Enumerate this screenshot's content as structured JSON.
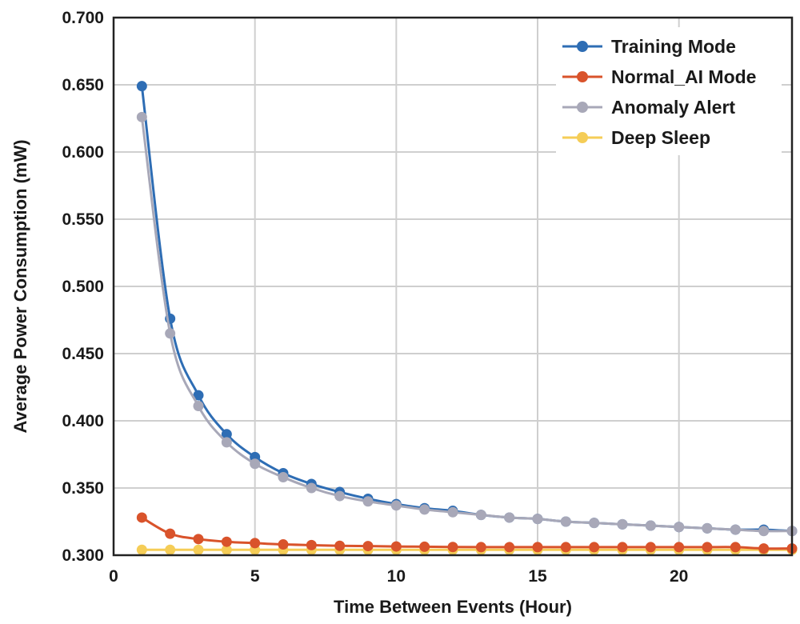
{
  "chart_data": {
    "type": "line",
    "title": "",
    "xlabel": "Time Between Events (Hour)",
    "ylabel": "Average Power Consumption (mW)",
    "xlim": [
      0,
      24
    ],
    "ylim": [
      0.3,
      0.7
    ],
    "xticks": [
      "0",
      "5",
      "10",
      "15",
      "20"
    ],
    "xtick_values": [
      0,
      5,
      10,
      15,
      20
    ],
    "yticks": [
      "0.300",
      "0.350",
      "0.400",
      "0.450",
      "0.500",
      "0.550",
      "0.600",
      "0.650",
      "0.700"
    ],
    "ytick_values": [
      0.3,
      0.35,
      0.4,
      0.45,
      0.5,
      0.55,
      0.6,
      0.65,
      0.7
    ],
    "grid": true,
    "legend_position": "top-right",
    "x": [
      1,
      2,
      3,
      4,
      5,
      6,
      7,
      8,
      9,
      10,
      11,
      12,
      13,
      14,
      15,
      16,
      17,
      18,
      19,
      20,
      21,
      22,
      23,
      24
    ],
    "series": [
      {
        "name": "Training Mode",
        "color": "#2e6db4",
        "values": [
          0.649,
          0.476,
          0.419,
          0.39,
          0.373,
          0.361,
          0.353,
          0.347,
          0.342,
          0.338,
          0.335,
          0.333,
          0.33,
          0.328,
          0.327,
          0.325,
          0.324,
          0.323,
          0.322,
          0.321,
          0.32,
          0.319,
          0.319,
          0.318
        ]
      },
      {
        "name": "Normal_AI Mode",
        "color": "#d9532b",
        "values": [
          0.328,
          0.316,
          0.312,
          0.31,
          0.309,
          0.308,
          0.3075,
          0.307,
          0.3068,
          0.3065,
          0.3063,
          0.3061,
          0.306,
          0.306,
          0.306,
          0.306,
          0.306,
          0.306,
          0.306,
          0.306,
          0.306,
          0.306,
          0.305,
          0.305
        ]
      },
      {
        "name": "Anomaly Alert",
        "color": "#a8a8b8",
        "values": [
          0.626,
          0.465,
          0.411,
          0.384,
          0.368,
          0.358,
          0.35,
          0.344,
          0.34,
          0.337,
          0.334,
          0.332,
          0.33,
          0.328,
          0.327,
          0.325,
          0.324,
          0.323,
          0.322,
          0.321,
          0.32,
          0.319,
          0.318,
          0.318
        ]
      },
      {
        "name": "Deep Sleep",
        "color": "#f5cd57",
        "values": [
          0.304,
          0.304,
          0.304,
          0.304,
          0.304,
          0.304,
          0.304,
          0.304,
          0.304,
          0.304,
          0.304,
          0.304,
          0.304,
          0.304,
          0.304,
          0.304,
          0.304,
          0.304,
          0.304,
          0.304,
          0.304,
          0.304,
          0.304,
          0.304
        ]
      }
    ]
  }
}
